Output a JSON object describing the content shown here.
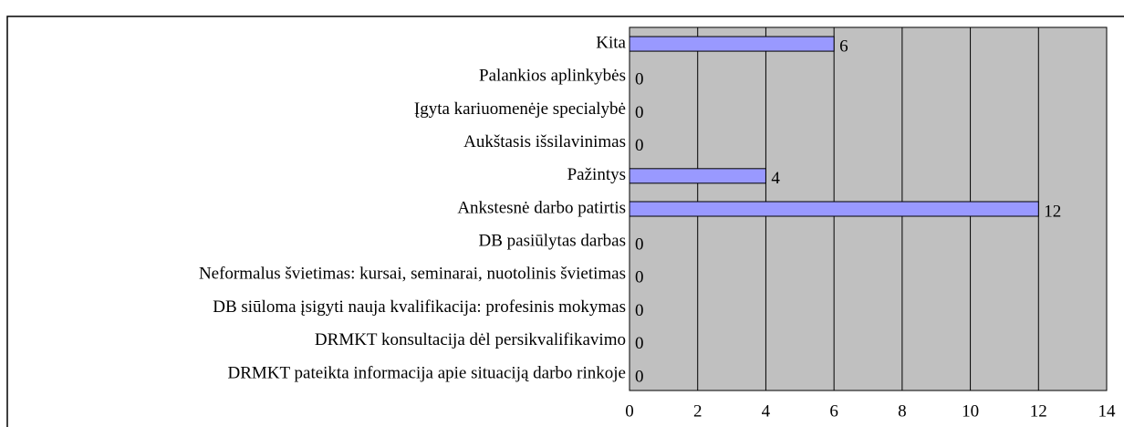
{
  "chart_data": {
    "type": "bar",
    "orientation": "horizontal",
    "categories": [
      "Kita",
      "Palankios aplinkybės",
      "Įgyta kariuomenėje specialybė",
      "Aukštasis išsilavinimas",
      "Pažintys",
      "Ankstesnė darbo patirtis",
      "DB pasiūlytas darbas",
      "Neformalus švietimas: kursai, seminarai, nuotolinis švietimas",
      "DB siūloma įsigyti nauja kvalifikacija: profesinis mokymas",
      "DRMKT konsultacija dėl persikvalifikavimo",
      "DRMKT pateikta informacija apie situaciją darbo rinkoje"
    ],
    "values": [
      6,
      0,
      0,
      0,
      4,
      12,
      0,
      0,
      0,
      0,
      0
    ],
    "color": "#9999ff",
    "xlim": [
      0,
      14
    ],
    "xticks": [
      0,
      2,
      4,
      6,
      8,
      10,
      12,
      14
    ],
    "grid": true
  }
}
